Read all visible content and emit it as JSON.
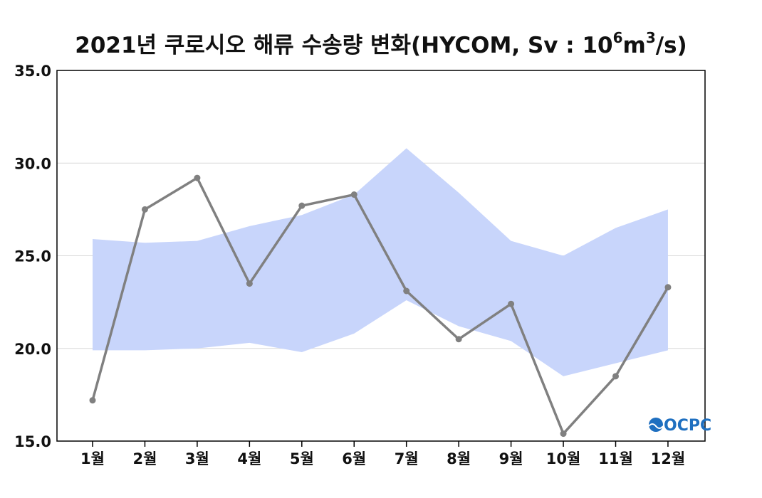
{
  "chart_data": {
    "type": "line",
    "title": {
      "main": "2021년 쿠로시오 해류 수송량 변화(HYCOM, Sv : 10",
      "exp1": "6",
      "mid": "m",
      "exp2": "3",
      "end": "/s)"
    },
    "categories": [
      "1월",
      "2월",
      "3월",
      "4월",
      "5월",
      "6월",
      "7월",
      "8월",
      "9월",
      "10월",
      "11월",
      "12월"
    ],
    "series": [
      {
        "values": [
          17.2,
          27.5,
          29.2,
          23.5,
          27.7,
          28.3,
          23.1,
          20.5,
          22.4,
          15.4,
          18.5,
          23.3
        ],
        "color": "#808080"
      }
    ],
    "band": {
      "upper": [
        25.9,
        25.7,
        25.8,
        26.6,
        27.2,
        28.3,
        30.8,
        28.4,
        25.8,
        25.0,
        26.5,
        27.5
      ],
      "lower": [
        19.9,
        19.9,
        20.0,
        20.3,
        19.8,
        20.8,
        22.6,
        21.2,
        20.4,
        18.5,
        19.2,
        19.9
      ],
      "color": "#c8d5fb"
    },
    "yticks": [
      "35.0",
      "30.0",
      "25.0",
      "20.0",
      "15.0"
    ],
    "ylim": [
      15,
      35
    ],
    "grid": true,
    "logo": "OCPC"
  }
}
